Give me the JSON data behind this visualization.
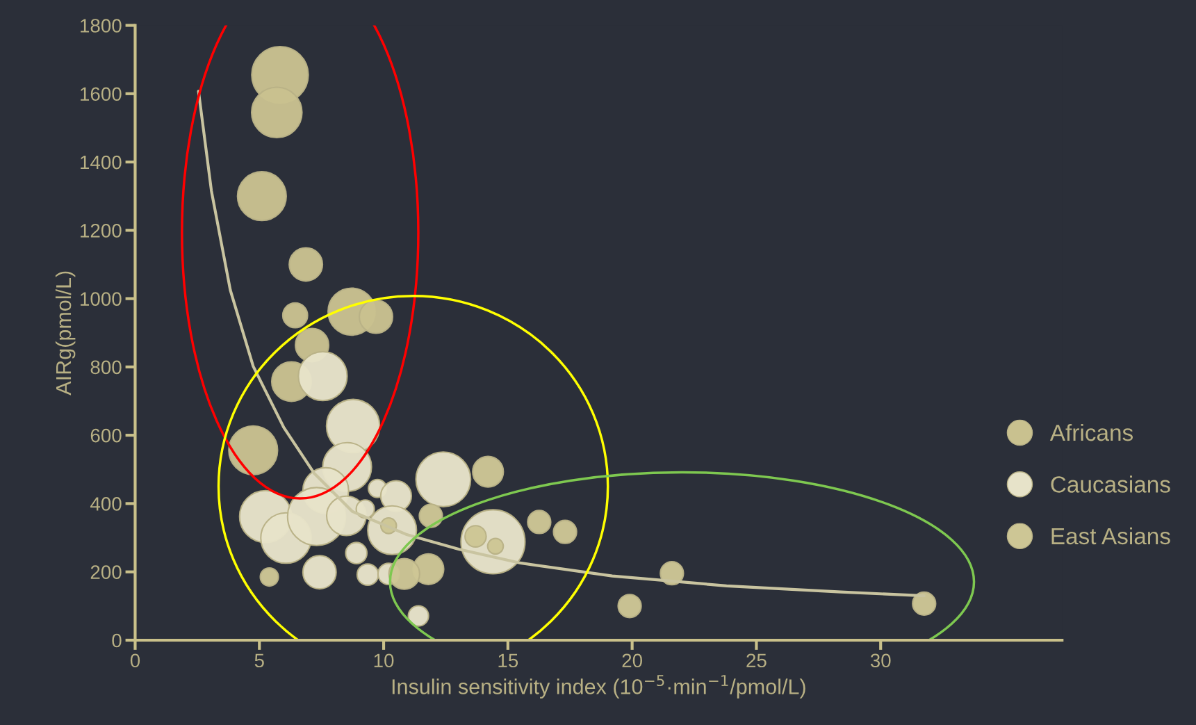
{
  "chart_data": {
    "type": "bubble",
    "xlabel": "Insulin sensitivity index (10$^{−5}$·min$^{−1}$/pmol/L)",
    "ylabel": "AIRg(pmol/L)",
    "xlim": [
      0,
      37.3
    ],
    "xticks": [
      0,
      5,
      10,
      15,
      20,
      25,
      30
    ],
    "ylim": [
      0,
      1800
    ],
    "yticks": [
      0,
      200,
      400,
      600,
      800,
      1000,
      1200,
      1400,
      1600,
      1800
    ],
    "grid": false,
    "legend": "right",
    "series": [
      {
        "name": "Africans",
        "color": "#c9c18f",
        "x": [
          5.83,
          5.7,
          5.1,
          6.87,
          6.44,
          8.71,
          9.69,
          7.12,
          6.29,
          4.75
        ],
        "values": [
          1655,
          1545,
          1300,
          1100,
          951,
          962,
          947,
          864,
          757,
          556
        ],
        "sizes": [
          0.78,
          0.62,
          0.58,
          0.27,
          0.15,
          0.54,
          0.27,
          0.27,
          0.38,
          0.58
        ]
      },
      {
        "name": "Caucasians",
        "color": "#e7e3c9",
        "x": [
          7.55,
          8.77,
          8.53,
          7.67,
          5.25,
          6.07,
          7.3,
          8.5,
          9.26,
          9.75,
          10.5,
          10.34,
          12.4,
          14.4,
          7.42,
          8.9,
          9.36,
          10.2,
          11.4
        ],
        "values": [
          773,
          627,
          507,
          438,
          362,
          299,
          362,
          364,
          384,
          444,
          422,
          322,
          471,
          288,
          199,
          255,
          192,
          194,
          71
        ],
        "sizes": [
          0.58,
          0.69,
          0.58,
          0.51,
          0.66,
          0.62,
          0.82,
          0.38,
          0.08,
          0.08,
          0.23,
          0.58,
          0.73,
          1,
          0.27,
          0.11,
          0.11,
          0.11,
          0.1
        ]
      },
      {
        "name": "East Asians",
        "color": "#cdc695",
        "x": [
          5.4,
          11.9,
          16.26,
          17.3,
          14.2,
          21.6,
          19.9,
          31.75,
          11.8,
          10.83,
          13.7,
          14.5,
          10.2
        ],
        "values": [
          185,
          364,
          346,
          317,
          493,
          196,
          100,
          107,
          208,
          194,
          304,
          275,
          335
        ],
        "sizes": [
          0.08,
          0.13,
          0.13,
          0.13,
          0.23,
          0.13,
          0.13,
          0.13,
          0.23,
          0.23,
          0.11,
          0.06,
          0.06
        ]
      },
      {
        "type": "line",
        "color": "#c9c4a0",
        "x": [
          2.55,
          3.07,
          3.83,
          4.75,
          5.98,
          7.2,
          8.74,
          10.9,
          13.04,
          15.5,
          19.2,
          23.8,
          28.4,
          31.75
        ],
        "values": [
          1607,
          1315,
          1025,
          802,
          623,
          489,
          377,
          310,
          266,
          226,
          188,
          159,
          141,
          130
        ]
      }
    ]
  }
}
